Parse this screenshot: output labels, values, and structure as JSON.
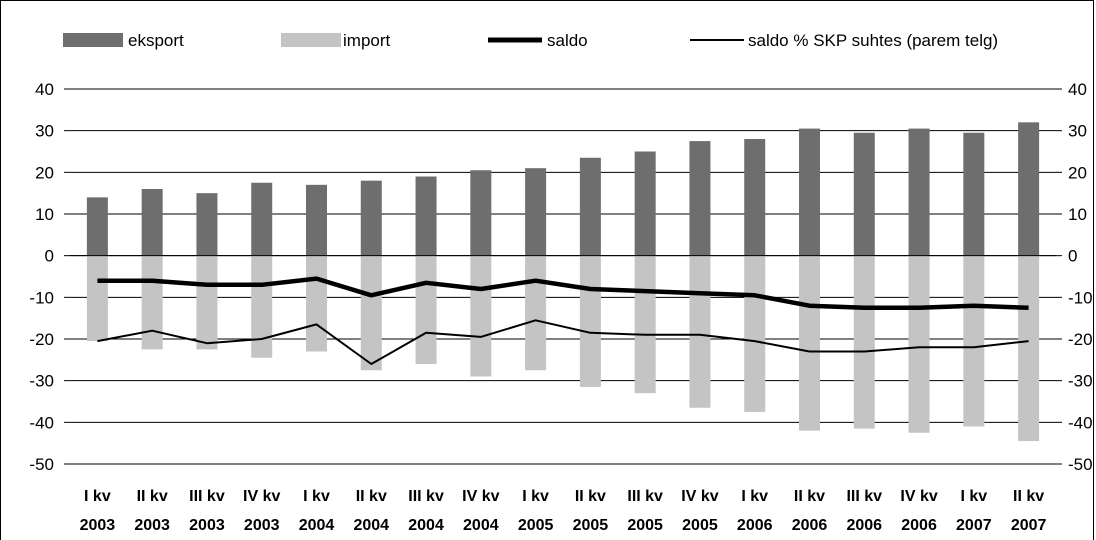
{
  "chart_data": {
    "type": "bar",
    "categories": [
      [
        "I kv",
        "2003"
      ],
      [
        "II kv",
        "2003"
      ],
      [
        "III kv",
        "2003"
      ],
      [
        "IV kv",
        "2003"
      ],
      [
        "I kv",
        "2004"
      ],
      [
        "II kv",
        "2004"
      ],
      [
        "III kv",
        "2004"
      ],
      [
        "IV kv",
        "2004"
      ],
      [
        "I kv",
        "2005"
      ],
      [
        "II kv",
        "2005"
      ],
      [
        "III kv",
        "2005"
      ],
      [
        "IV kv",
        "2005"
      ],
      [
        "I kv",
        "2006"
      ],
      [
        "II kv",
        "2006"
      ],
      [
        "III kv",
        "2006"
      ],
      [
        "IV kv",
        "2006"
      ],
      [
        "I kv",
        "2007"
      ],
      [
        "II kv",
        "2007"
      ]
    ],
    "ylim": [
      -50,
      40
    ],
    "yticks": [
      "40",
      "30",
      "20",
      "10",
      "0",
      "-10",
      "-20",
      "-30",
      "-40",
      "-50"
    ],
    "y2ticks": [
      "40",
      "30",
      "20",
      "10",
      "0",
      "-10",
      "-20",
      "-30",
      "-40",
      "-50"
    ],
    "grid": true,
    "legend_position": "top",
    "series": [
      {
        "name": "eksport",
        "kind": "bar",
        "color": "#6e6e6e",
        "values": [
          14,
          16,
          15,
          17.5,
          17,
          18,
          19,
          20.5,
          21,
          23.5,
          25,
          27.5,
          28,
          30.5,
          29.5,
          30.5,
          29.5,
          32
        ]
      },
      {
        "name": "import",
        "kind": "bar",
        "color": "#c4c4c4",
        "values": [
          -20.5,
          -22.5,
          -22.5,
          -24.5,
          -23,
          -27.5,
          -26,
          -29,
          -27.5,
          -31.5,
          -33,
          -36.5,
          -37.5,
          -42,
          -41.5,
          -42.5,
          -41,
          -44.5
        ]
      },
      {
        "name": "saldo",
        "kind": "line-thick",
        "color": "#000000",
        "values": [
          -6,
          -6,
          -7,
          -7,
          -5.5,
          -9.5,
          -6.5,
          -8,
          -6,
          -8,
          -8.5,
          -9,
          -9.5,
          -12,
          -12.5,
          -12.5,
          -12,
          -12.5
        ]
      },
      {
        "name": "saldo % SKP suhtes (parem telg)",
        "kind": "line-thin",
        "color": "#000000",
        "values": [
          -20.5,
          -18,
          -21,
          -20,
          -16.5,
          -26,
          -18.5,
          -19.5,
          -15.5,
          -18.5,
          -19,
          -19,
          -20.5,
          -23,
          -23,
          -22,
          -22,
          -20.5
        ]
      }
    ]
  }
}
